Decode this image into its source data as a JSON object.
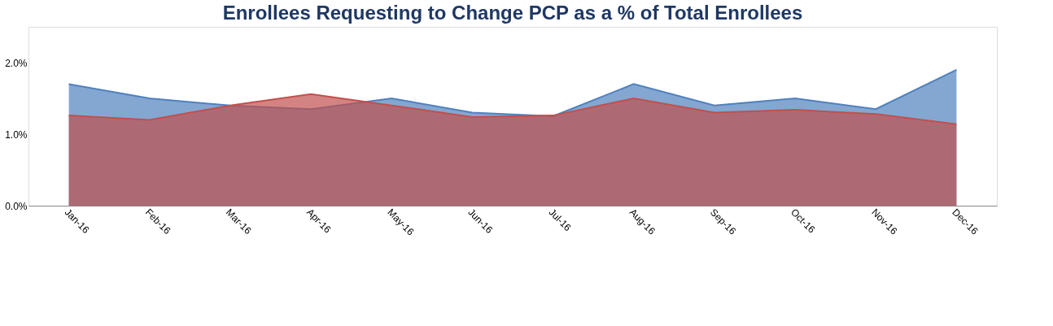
{
  "chart_data": {
    "type": "area",
    "title": "Enrollees Requesting to Change PCP as a % of Total Enrollees",
    "categories": [
      "Jan-16",
      "Feb-16",
      "Mar-16",
      "Apr-16",
      "May-16",
      "Jun-16",
      "Jul-16",
      "Aug-16",
      "Sep-16",
      "Oct-16",
      "Nov-16",
      "Dec-16"
    ],
    "series": [
      {
        "color": "#c0504d",
        "values": [
          1.26,
          1.2,
          1.4,
          1.56,
          1.4,
          1.24,
          1.26,
          1.5,
          1.3,
          1.34,
          1.28,
          1.14
        ]
      },
      {
        "color": "#4f81bd",
        "values": [
          1.7,
          1.5,
          1.4,
          1.35,
          1.5,
          1.3,
          1.25,
          1.7,
          1.4,
          1.5,
          1.35,
          1.9
        ]
      }
    ],
    "ylim": [
      0,
      2.5
    ],
    "yticks": [
      {
        "value": 0,
        "label": "0.0%"
      },
      {
        "value": 1,
        "label": "1.0%"
      },
      {
        "value": 2,
        "label": "2.0%"
      }
    ],
    "grid": false
  }
}
